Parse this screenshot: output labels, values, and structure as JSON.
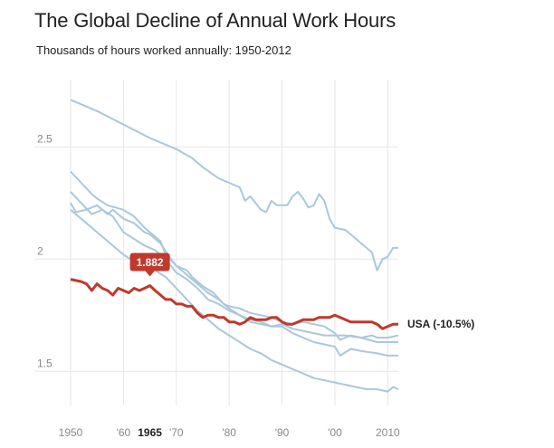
{
  "chart_data": {
    "type": "line",
    "title": "The Global Decline of Annual Work Hours",
    "subtitle": "Thousands of hours worked annually: 1950-2012",
    "xlim": [
      1950,
      2012
    ],
    "ylim": [
      1.38,
      2.8
    ],
    "grid": true,
    "x_ticks": [
      {
        "value": 1950,
        "label": "1950",
        "highlight": false
      },
      {
        "value": 1960,
        "label": "'60",
        "highlight": false
      },
      {
        "value": 1965,
        "label": "1965",
        "highlight": true
      },
      {
        "value": 1970,
        "label": "'70",
        "highlight": false
      },
      {
        "value": 1980,
        "label": "'80",
        "highlight": false
      },
      {
        "value": 1990,
        "label": "'90",
        "highlight": false
      },
      {
        "value": 2000,
        "label": "'00",
        "highlight": false
      },
      {
        "value": 2010,
        "label": "2010",
        "highlight": false
      }
    ],
    "y_ticks": [
      {
        "value": 1.5,
        "label": "1.5"
      },
      {
        "value": 2.0,
        "label": "2"
      },
      {
        "value": 2.5,
        "label": "2.5"
      }
    ],
    "highlight_series": {
      "label": "USA (-10.5%)",
      "color": "#c0392b",
      "callout": {
        "x": 1965,
        "y": 1.882,
        "label": "1.882"
      },
      "points": [
        [
          1950,
          1.91
        ],
        [
          1952,
          1.9
        ],
        [
          1953,
          1.89
        ],
        [
          1954,
          1.86
        ],
        [
          1955,
          1.89
        ],
        [
          1956,
          1.87
        ],
        [
          1957,
          1.86
        ],
        [
          1958,
          1.84
        ],
        [
          1959,
          1.87
        ],
        [
          1960,
          1.86
        ],
        [
          1961,
          1.85
        ],
        [
          1962,
          1.87
        ],
        [
          1963,
          1.86
        ],
        [
          1964,
          1.87
        ],
        [
          1965,
          1.882
        ],
        [
          1966,
          1.86
        ],
        [
          1967,
          1.84
        ],
        [
          1968,
          1.82
        ],
        [
          1969,
          1.82
        ],
        [
          1970,
          1.8
        ],
        [
          1971,
          1.8
        ],
        [
          1972,
          1.79
        ],
        [
          1973,
          1.79
        ],
        [
          1974,
          1.76
        ],
        [
          1975,
          1.74
        ],
        [
          1976,
          1.75
        ],
        [
          1977,
          1.75
        ],
        [
          1978,
          1.74
        ],
        [
          1979,
          1.74
        ],
        [
          1980,
          1.72
        ],
        [
          1981,
          1.72
        ],
        [
          1982,
          1.71
        ],
        [
          1983,
          1.72
        ],
        [
          1984,
          1.74
        ],
        [
          1985,
          1.73
        ],
        [
          1986,
          1.73
        ],
        [
          1987,
          1.73
        ],
        [
          1988,
          1.74
        ],
        [
          1989,
          1.74
        ],
        [
          1990,
          1.72
        ],
        [
          1991,
          1.71
        ],
        [
          1992,
          1.71
        ],
        [
          1993,
          1.72
        ],
        [
          1994,
          1.73
        ],
        [
          1995,
          1.73
        ],
        [
          1996,
          1.73
        ],
        [
          1997,
          1.74
        ],
        [
          1998,
          1.74
        ],
        [
          1999,
          1.74
        ],
        [
          2000,
          1.75
        ],
        [
          2001,
          1.74
        ],
        [
          2002,
          1.73
        ],
        [
          2003,
          1.72
        ],
        [
          2004,
          1.72
        ],
        [
          2005,
          1.72
        ],
        [
          2006,
          1.72
        ],
        [
          2007,
          1.72
        ],
        [
          2008,
          1.71
        ],
        [
          2009,
          1.69
        ],
        [
          2010,
          1.7
        ],
        [
          2011,
          1.71
        ],
        [
          2012,
          1.71
        ]
      ]
    },
    "series": [
      {
        "color": "#a9c8dc",
        "points": [
          [
            1950,
            2.71
          ],
          [
            1955,
            2.66
          ],
          [
            1960,
            2.6
          ],
          [
            1965,
            2.54
          ],
          [
            1970,
            2.49
          ],
          [
            1973,
            2.45
          ],
          [
            1975,
            2.41
          ],
          [
            1978,
            2.36
          ],
          [
            1980,
            2.34
          ],
          [
            1982,
            2.32
          ],
          [
            1983,
            2.26
          ],
          [
            1984,
            2.28
          ],
          [
            1986,
            2.22
          ],
          [
            1987,
            2.21
          ],
          [
            1988,
            2.26
          ],
          [
            1989,
            2.24
          ],
          [
            1991,
            2.24
          ],
          [
            1992,
            2.28
          ],
          [
            1993,
            2.3
          ],
          [
            1994,
            2.27
          ],
          [
            1995,
            2.23
          ],
          [
            1996,
            2.24
          ],
          [
            1997,
            2.29
          ],
          [
            1998,
            2.26
          ],
          [
            1999,
            2.18
          ],
          [
            2000,
            2.14
          ],
          [
            2002,
            2.13
          ],
          [
            2004,
            2.09
          ],
          [
            2005,
            2.07
          ],
          [
            2006,
            2.05
          ],
          [
            2007,
            2.03
          ],
          [
            2008,
            1.95
          ],
          [
            2009,
            2.0
          ],
          [
            2010,
            2.01
          ],
          [
            2011,
            2.05
          ],
          [
            2012,
            2.05
          ]
        ]
      },
      {
        "color": "#a9c8dc",
        "points": [
          [
            1950,
            2.39
          ],
          [
            1952,
            2.34
          ],
          [
            1954,
            2.29
          ],
          [
            1955,
            2.27
          ],
          [
            1957,
            2.24
          ],
          [
            1960,
            2.22
          ],
          [
            1962,
            2.19
          ],
          [
            1964,
            2.14
          ],
          [
            1965,
            2.12
          ],
          [
            1967,
            2.08
          ],
          [
            1968,
            2.02
          ],
          [
            1970,
            1.97
          ],
          [
            1972,
            1.95
          ],
          [
            1973,
            1.92
          ],
          [
            1975,
            1.88
          ],
          [
            1977,
            1.85
          ],
          [
            1979,
            1.8
          ],
          [
            1980,
            1.79
          ],
          [
            1982,
            1.78
          ],
          [
            1984,
            1.76
          ],
          [
            1986,
            1.75
          ],
          [
            1988,
            1.74
          ],
          [
            1990,
            1.72
          ],
          [
            1992,
            1.71
          ],
          [
            1994,
            1.72
          ],
          [
            1996,
            1.71
          ],
          [
            1998,
            1.7
          ],
          [
            2000,
            1.67
          ],
          [
            2001,
            1.64
          ],
          [
            2003,
            1.66
          ],
          [
            2005,
            1.65
          ],
          [
            2007,
            1.66
          ],
          [
            2008,
            1.65
          ],
          [
            2010,
            1.65
          ],
          [
            2012,
            1.66
          ]
        ]
      },
      {
        "color": "#a9c8dc",
        "points": [
          [
            1950,
            2.3
          ],
          [
            1952,
            2.25
          ],
          [
            1954,
            2.2
          ],
          [
            1956,
            2.22
          ],
          [
            1958,
            2.19
          ],
          [
            1960,
            2.12
          ],
          [
            1962,
            2.09
          ],
          [
            1964,
            2.06
          ],
          [
            1966,
            2.04
          ],
          [
            1968,
            2.0
          ],
          [
            1970,
            1.94
          ],
          [
            1972,
            1.91
          ],
          [
            1974,
            1.87
          ],
          [
            1976,
            1.82
          ],
          [
            1978,
            1.8
          ],
          [
            1980,
            1.77
          ],
          [
            1982,
            1.75
          ],
          [
            1984,
            1.73
          ],
          [
            1986,
            1.72
          ],
          [
            1988,
            1.7
          ],
          [
            1990,
            1.71
          ],
          [
            1992,
            1.69
          ],
          [
            1994,
            1.68
          ],
          [
            1996,
            1.67
          ],
          [
            1998,
            1.66
          ],
          [
            2000,
            1.66
          ],
          [
            2002,
            1.66
          ],
          [
            2005,
            1.65
          ],
          [
            2008,
            1.63
          ],
          [
            2010,
            1.63
          ],
          [
            2012,
            1.63
          ]
        ]
      },
      {
        "color": "#a9c8dc",
        "points": [
          [
            1950,
            2.25
          ],
          [
            1951,
            2.21
          ],
          [
            1953,
            2.22
          ],
          [
            1955,
            2.24
          ],
          [
            1957,
            2.2
          ],
          [
            1958,
            2.22
          ],
          [
            1960,
            2.18
          ],
          [
            1962,
            2.16
          ],
          [
            1964,
            2.12
          ],
          [
            1965,
            2.11
          ],
          [
            1967,
            2.07
          ],
          [
            1969,
            2.0
          ],
          [
            1970,
            1.97
          ],
          [
            1972,
            1.93
          ],
          [
            1974,
            1.89
          ],
          [
            1976,
            1.85
          ],
          [
            1978,
            1.82
          ],
          [
            1980,
            1.78
          ],
          [
            1982,
            1.75
          ],
          [
            1984,
            1.72
          ],
          [
            1986,
            1.71
          ],
          [
            1988,
            1.7
          ],
          [
            1990,
            1.7
          ],
          [
            1992,
            1.67
          ],
          [
            1994,
            1.65
          ],
          [
            1996,
            1.63
          ],
          [
            1998,
            1.62
          ],
          [
            2000,
            1.61
          ],
          [
            2001,
            1.57
          ],
          [
            2003,
            1.6
          ],
          [
            2005,
            1.59
          ],
          [
            2008,
            1.58
          ],
          [
            2010,
            1.57
          ],
          [
            2012,
            1.57
          ]
        ]
      },
      {
        "color": "#a9c8dc",
        "points": [
          [
            1950,
            2.22
          ],
          [
            1952,
            2.18
          ],
          [
            1954,
            2.14
          ],
          [
            1956,
            2.1
          ],
          [
            1958,
            2.06
          ],
          [
            1960,
            2.02
          ],
          [
            1962,
            1.99
          ],
          [
            1964,
            1.97
          ],
          [
            1966,
            1.95
          ],
          [
            1968,
            1.92
          ],
          [
            1970,
            1.87
          ],
          [
            1972,
            1.82
          ],
          [
            1974,
            1.77
          ],
          [
            1976,
            1.73
          ],
          [
            1978,
            1.69
          ],
          [
            1980,
            1.66
          ],
          [
            1982,
            1.63
          ],
          [
            1984,
            1.6
          ],
          [
            1986,
            1.58
          ],
          [
            1988,
            1.55
          ],
          [
            1990,
            1.53
          ],
          [
            1992,
            1.51
          ],
          [
            1994,
            1.49
          ],
          [
            1996,
            1.47
          ],
          [
            1998,
            1.46
          ],
          [
            2000,
            1.45
          ],
          [
            2002,
            1.44
          ],
          [
            2004,
            1.43
          ],
          [
            2006,
            1.42
          ],
          [
            2008,
            1.42
          ],
          [
            2010,
            1.41
          ],
          [
            2011,
            1.43
          ],
          [
            2012,
            1.42
          ]
        ]
      }
    ]
  }
}
